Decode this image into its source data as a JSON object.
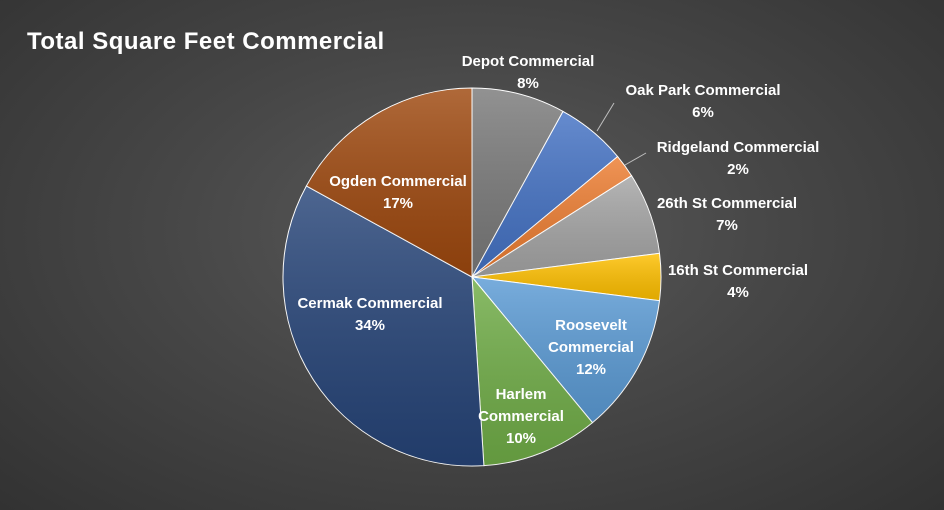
{
  "chart_data": {
    "type": "pie",
    "title": "Total Square Feet Commercial",
    "categories": [
      "Depot Commercial",
      "Oak Park Commercial",
      "Ridgeland Commercial",
      "26th St Commercial",
      "16th St Commercial",
      "Roosevelt Commercial",
      "Harlem Commercial",
      "Cermak Commercial",
      "Ogden Commercial"
    ],
    "values": [
      8,
      6,
      2,
      7,
      4,
      12,
      10,
      34,
      17
    ],
    "value_labels": [
      "8%",
      "6%",
      "2%",
      "7%",
      "4%",
      "12%",
      "10%",
      "34%",
      "17%"
    ],
    "colors": [
      "#7a7a7a",
      "#4472c4",
      "#ed7d31",
      "#a5a5a5",
      "#ffc000",
      "#5b9bd5",
      "#70ad47",
      "#264478",
      "#9e480e"
    ],
    "start_angle": "12 o'clock, clockwise",
    "legend": "none (data labels on chart)"
  }
}
